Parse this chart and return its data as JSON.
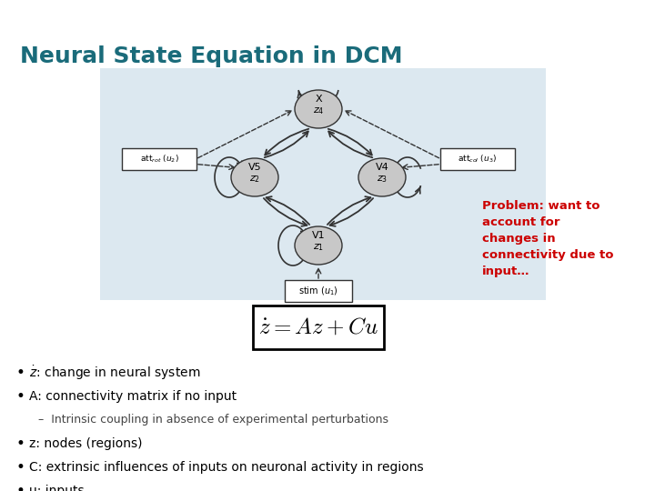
{
  "title": "Neural State Equation in DCM",
  "title_color": "#1a6b7a",
  "title_fontsize": 18,
  "background_top": "#a8bac8",
  "background_main": "#ffffff",
  "background_diagram": "#dce8f0",
  "problem_text": "Problem: want to\naccount for\nchanges in\nconnectivity due to\ninput…",
  "problem_color": "#cc0000",
  "problem_fontsize": 9.5,
  "equation": "$\\dot{z} = Az + Cu$",
  "equation_fontsize": 18,
  "bullet_items": [
    "$\\dot{z}$: change in neural system",
    "A: connectivity matrix if no input",
    "–  Intrinsic coupling in absence of experimental perturbations",
    "z: nodes (regions)",
    "C: extrinsic influences of inputs on neuronal activity in regions",
    "u: inputs"
  ],
  "bullet_indent": [
    0,
    0,
    1,
    0,
    0,
    0
  ],
  "bullet_fontsize": 10
}
